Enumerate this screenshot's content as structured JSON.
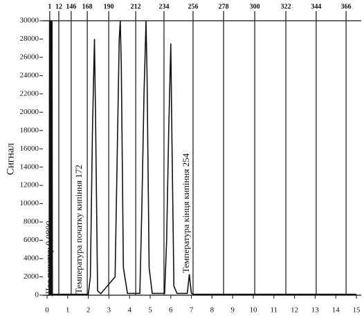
{
  "chart_data": {
    "type": "line",
    "y_label": "Сигнал",
    "annotations": [
      "Час початку 0,0800",
      "Температура початку кипіння 172",
      "Температура кінця кипіння 254"
    ],
    "x": [
      0,
      0.1,
      0.12,
      0.14,
      0.16,
      0.18,
      0.2,
      0.22,
      0.24,
      0.26,
      0.3,
      2.0,
      2.1,
      2.2,
      2.3,
      2.35,
      2.45,
      2.6,
      3.3,
      3.4,
      3.5,
      3.55,
      3.6,
      3.7,
      3.9,
      4.5,
      4.6,
      4.7,
      4.8,
      4.85,
      4.95,
      5.1,
      5.7,
      5.8,
      5.9,
      6.0,
      6.05,
      6.15,
      6.3,
      6.8,
      6.85,
      6.9,
      6.95,
      7.0,
      7.1,
      15
    ],
    "series": [
      {
        "color": "#111111",
        "values": [
          0,
          0,
          30000,
          0,
          30000,
          0,
          30000,
          0,
          30000,
          0,
          100,
          100,
          2000,
          18000,
          28000,
          20000,
          500,
          150,
          2000,
          15000,
          28000,
          30000,
          25000,
          3000,
          200,
          200,
          10000,
          22000,
          30000,
          24000,
          3000,
          200,
          200,
          6000,
          18000,
          27500,
          18000,
          1000,
          200,
          200,
          1200,
          2300,
          1200,
          200,
          100,
          100
        ]
      }
    ],
    "xlim": [
      0,
      15
    ],
    "xticks": [
      0,
      1,
      2,
      3,
      4,
      5,
      6,
      7,
      8,
      9,
      10,
      11,
      12,
      13,
      14,
      15
    ],
    "ylim": [
      0,
      30000
    ],
    "yticks": [
      0,
      2000,
      4000,
      6000,
      8000,
      10000,
      12000,
      14000,
      16000,
      18000,
      20000,
      22000,
      24000,
      26000,
      28000,
      30000
    ],
    "x2ticks": [
      {
        "value": 0.13,
        "label": "1"
      },
      {
        "value": 0.57,
        "label": "12"
      },
      {
        "value": 1.17,
        "label": "146"
      },
      {
        "value": 1.95,
        "label": "168"
      },
      {
        "value": 2.99,
        "label": "190"
      },
      {
        "value": 4.3,
        "label": "212"
      },
      {
        "value": 5.67,
        "label": "234"
      },
      {
        "value": 7.08,
        "label": "256"
      },
      {
        "value": 8.56,
        "label": "278"
      },
      {
        "value": 10.07,
        "label": "300"
      },
      {
        "value": 11.58,
        "label": "322"
      },
      {
        "value": 13.05,
        "label": "344"
      },
      {
        "value": 14.5,
        "label": "366"
      }
    ]
  }
}
